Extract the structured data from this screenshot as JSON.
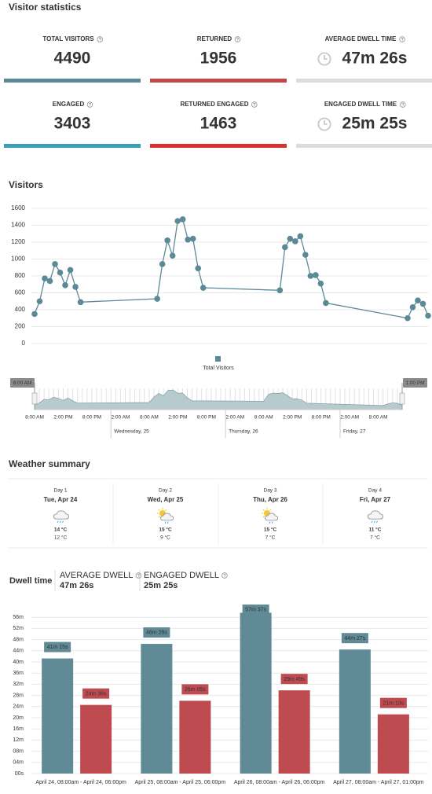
{
  "header": {
    "title": "Visitor statistics"
  },
  "stats": [
    {
      "label": "TOTAL VISITORS",
      "value": 4490,
      "color": "#5b8a96"
    },
    {
      "label": "RETURNED",
      "value": 1956,
      "color": "#c2474a"
    },
    {
      "label": "AVERAGE DWELL TIME",
      "value": "47m 26s",
      "color": "#dcdcdc"
    },
    {
      "label": "ENGAGED",
      "value": 3403,
      "color": "#3aa0b8"
    },
    {
      "label": "RETURNED ENGAGED",
      "value": 1463,
      "color": "#d9312f"
    },
    {
      "label": "ENGAGED DWELL TIME",
      "value": "25m 25s",
      "color": "#dcdcdc"
    }
  ],
  "chart_data": [
    {
      "type": "line",
      "title": "Visitors",
      "x": [
        "Apr 24 08:00",
        "Apr 24 09:00",
        "Apr 24 10:00",
        "Apr 24 11:00",
        "Apr 24 12:00",
        "Apr 24 13:00",
        "Apr 24 14:00",
        "Apr 24 15:00",
        "Apr 24 16:00",
        "Apr 24 17:00",
        "Apr 25 08:00",
        "Apr 25 09:00",
        "Apr 25 10:00",
        "Apr 25 11:00",
        "Apr 25 12:00",
        "Apr 25 13:00",
        "Apr 25 14:00",
        "Apr 25 15:00",
        "Apr 25 16:00",
        "Apr 25 17:00",
        "Apr 26 08:00",
        "Apr 26 09:00",
        "Apr 26 10:00",
        "Apr 26 11:00",
        "Apr 26 12:00",
        "Apr 26 13:00",
        "Apr 26 14:00",
        "Apr 26 15:00",
        "Apr 26 16:00",
        "Apr 26 17:00",
        "Apr 27 09:00",
        "Apr 27 10:00",
        "Apr 27 11:00",
        "Apr 27 12:00",
        "Apr 27 13:00"
      ],
      "xlim": [
        "Apr 24 08:00",
        "Apr 27 13:00"
      ],
      "series": [
        {
          "name": "Total Visitors",
          "color": "#5b8a96",
          "values": [
            350,
            500,
            770,
            740,
            940,
            840,
            690,
            870,
            670,
            490,
            530,
            940,
            1220,
            1040,
            1450,
            1470,
            1230,
            1240,
            890,
            660,
            630,
            1140,
            1240,
            1210,
            1270,
            1050,
            800,
            810,
            710,
            480,
            300,
            430,
            510,
            470,
            330
          ]
        }
      ],
      "ylim": [
        0,
        1600
      ],
      "yticks": [
        0,
        200,
        400,
        600,
        800,
        1000,
        1200,
        1400,
        1600
      ],
      "grid": true
    },
    {
      "type": "bar",
      "categories": [
        "April 24, 08:00am - April 24, 06:00pm",
        "April 25, 08:00am - April 25, 06:00pm",
        "April 26, 08:00am - April 26, 06:00pm",
        "April 27, 08:00am - April 27, 01:00pm"
      ],
      "series": [
        {
          "color": "#5f8a96",
          "values": [
            41.25,
            46.467,
            57.617,
            44.45
          ],
          "value_labels": [
            "41m 15s",
            "46m 28s",
            "57m 37s",
            "44m 27s"
          ]
        },
        {
          "color": "#bd4b50",
          "values": [
            24.6,
            26.083,
            29.817,
            21.217
          ],
          "value_labels": [
            "24m 36s",
            "26m 05s",
            "29m 49s",
            "21m 13s"
          ]
        }
      ],
      "ylim": [
        0,
        60
      ],
      "yticks": [
        {
          "value": 0,
          "label": "00s"
        },
        {
          "value": 4,
          "label": "04m"
        },
        {
          "value": 8,
          "label": "08m"
        },
        {
          "value": 12,
          "label": "12m"
        },
        {
          "value": 16,
          "label": "16m"
        },
        {
          "value": 20,
          "label": "20m"
        },
        {
          "value": 24,
          "label": "24m"
        },
        {
          "value": 28,
          "label": "28m"
        },
        {
          "value": 32,
          "label": "32m"
        },
        {
          "value": 36,
          "label": "36m"
        },
        {
          "value": 40,
          "label": "40m"
        },
        {
          "value": 44,
          "label": "44m"
        },
        {
          "value": 48,
          "label": "48m"
        },
        {
          "value": 52,
          "label": "52m"
        },
        {
          "value": 56,
          "label": "56m"
        }
      ],
      "grid": true
    }
  ],
  "navigator": {
    "start_label": "8:00 AM",
    "end_label": "1:00 PM",
    "ticks": [
      "8:00 AM",
      "2:00 PM",
      "8:00 PM",
      "2:00 AM",
      "8:00 AM",
      "2:00 PM",
      "8:00 PM",
      "2:00 AM",
      "8:00 AM",
      "2:00 PM",
      "8:00 PM",
      "2:00 AM",
      "8:00 AM"
    ],
    "days": [
      "Wednesday, 25",
      "Thursday, 26",
      "Friday, 27"
    ]
  },
  "weather": {
    "title": "Weather summary",
    "days": [
      {
        "day": "Day 1",
        "date": "Tue, Apr 24",
        "high": "14 °C",
        "low": "12 °C"
      },
      {
        "day": "Day 2",
        "date": "Wed, Apr 25",
        "high": "15 °C",
        "low": "9 °C"
      },
      {
        "day": "Day 3",
        "date": "Thu, Apr 26",
        "high": "15 °C",
        "low": "7 °C"
      },
      {
        "day": "Day 4",
        "date": "Fri, Apr 27",
        "high": "11 °C",
        "low": "7 °C"
      }
    ]
  },
  "dwell": {
    "title": "Dwell time",
    "average_label": "AVERAGE DWELL",
    "average": "47m 26s",
    "engaged_label": "ENGAGED DWELL",
    "engaged": "25m 25s"
  }
}
